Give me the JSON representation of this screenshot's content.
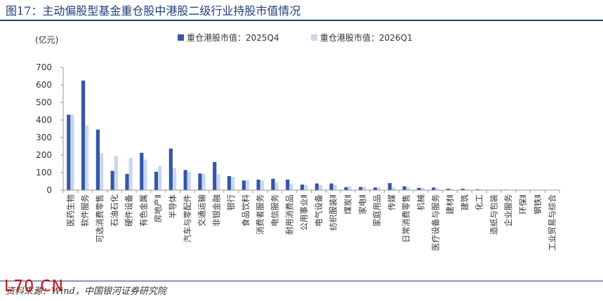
{
  "header": {
    "title": "图17：主动偏股型基金重仓股中港股二级行业持股市值情况"
  },
  "footer": {
    "source": "资料来源：Wind，中国银河证券研究院",
    "watermark": "L70.CN"
  },
  "colors": {
    "title": "#1f3f7a",
    "series_2025Q4": "#3556a8",
    "series_2026Q1": "#c9d8ee",
    "axis": "#999999",
    "watermark": "#cc1010"
  },
  "chart_data": {
    "type": "bar",
    "unit_label": "(亿元)",
    "ylim": [
      0,
      700
    ],
    "yticks": [
      0,
      100,
      200,
      300,
      400,
      500,
      600,
      700
    ],
    "grid": false,
    "legend_position": "top",
    "categories": [
      "医药生物",
      "软件服务",
      "可选消费零售",
      "石油石化",
      "硬件设备",
      "有色金属",
      "房地产Ⅱ",
      "半导体",
      "汽车与零配件",
      "交通运输",
      "非银金融",
      "银行",
      "食品饮料",
      "消费者服务",
      "电信服务",
      "耐用消费品",
      "公用事业Ⅱ",
      "电气设备",
      "纺织服装Ⅱ",
      "煤炭Ⅱ",
      "家电Ⅱ",
      "家庭用品",
      "传媒",
      "日常消费零售",
      "机械",
      "医疗设备与服务",
      "建材Ⅱ",
      "建筑",
      "化工",
      "造纸与包装",
      "企业服务",
      "环保Ⅱ",
      "钢铁Ⅱ",
      "工业贸易与综合"
    ],
    "series": [
      {
        "name": "重仓港股市值：2025Q4",
        "values": [
          430,
          625,
          345,
          110,
          93,
          213,
          105,
          237,
          115,
          95,
          160,
          80,
          55,
          60,
          65,
          60,
          32,
          38,
          38,
          17,
          18,
          15,
          40,
          22,
          13,
          15,
          8,
          8,
          5,
          2,
          3,
          1,
          1,
          1
        ]
      },
      {
        "name": "重仓港股市值：2026Q1",
        "values": [
          430,
          370,
          210,
          195,
          185,
          175,
          138,
          125,
          105,
          92,
          90,
          75,
          57,
          55,
          45,
          35,
          30,
          30,
          28,
          22,
          20,
          18,
          15,
          15,
          13,
          10,
          7,
          5,
          4,
          3,
          2,
          1,
          1,
          1
        ]
      }
    ]
  }
}
